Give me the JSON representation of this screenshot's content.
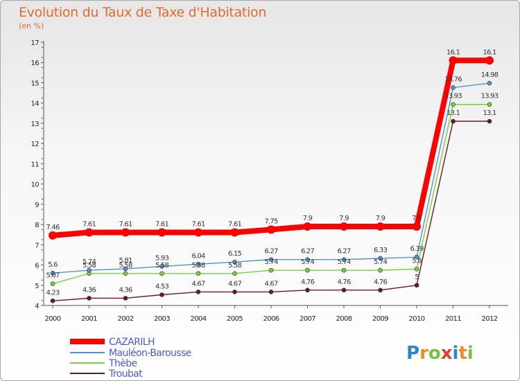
{
  "header": {
    "title": "Evolution du Taux de Taxe d'Habitation",
    "subtitle": "(en %)"
  },
  "brand": {
    "letters": [
      "P",
      "r",
      "o",
      "x",
      "i",
      "t",
      "i"
    ],
    "colors": [
      "#2e86c8",
      "#f08a24",
      "#7bc043",
      "#e0402e",
      "#2e86c8",
      "#f08a24",
      "#7bc043"
    ]
  },
  "chart_data": {
    "type": "line",
    "x": [
      "2000",
      "2001",
      "2002",
      "2003",
      "2004",
      "2005",
      "2006",
      "2007",
      "2008",
      "2009",
      "2010",
      "2011",
      "2012"
    ],
    "ylim": [
      4,
      17
    ],
    "yticks": [
      "4",
      "5",
      "6",
      "7",
      "8",
      "9",
      "10",
      "11",
      "12",
      "13",
      "14",
      "15",
      "16",
      "17"
    ],
    "grid": false,
    "legend": "bottom-left",
    "series": [
      {
        "name": "CAZARILH",
        "color": "#ff0000",
        "values": [
          7.46,
          7.61,
          7.61,
          7.61,
          7.61,
          7.61,
          7.75,
          7.9,
          7.9,
          7.9,
          7.9,
          16.1,
          16.1
        ],
        "labels": [
          "7.46",
          "7.61",
          "7.61",
          "7.61",
          "7.61",
          "7.61",
          "7.75",
          "7.9",
          "7.9",
          "7.9",
          "7.9",
          "16.1",
          "16.1"
        ]
      },
      {
        "name": "Mauléon-Barousse",
        "color": "#4f94cd",
        "values": [
          5.6,
          5.74,
          5.81,
          5.93,
          6.04,
          6.15,
          6.27,
          6.27,
          6.27,
          6.33,
          6.39,
          14.76,
          14.98
        ],
        "labels": [
          "5.6",
          "5.74",
          "5.81",
          "5.93",
          "6.04",
          "6.15",
          "6.27",
          "6.27",
          "6.27",
          "6.33",
          "6.39",
          "14.76",
          "14.98"
        ]
      },
      {
        "name": "Thèbe",
        "color": "#7ccd3c",
        "values": [
          5.07,
          5.58,
          5.58,
          5.58,
          5.58,
          5.58,
          5.74,
          5.74,
          5.74,
          5.74,
          5.8,
          13.93,
          13.93
        ],
        "labels": [
          "5.07",
          "5.58",
          "5.58",
          "5.58",
          "5.58",
          "5.58",
          "5.74",
          "5.74",
          "5.74",
          "5.74",
          "5.8",
          "13.93",
          "13.93"
        ]
      },
      {
        "name": "Troubat",
        "color": "#6b1a1a",
        "values": [
          4.23,
          4.36,
          4.36,
          4.53,
          4.67,
          4.67,
          4.67,
          4.76,
          4.76,
          4.76,
          5,
          13.1,
          13.1
        ],
        "labels": [
          "4.23",
          "4.36",
          "4.36",
          "4.53",
          "4.67",
          "4.67",
          "4.67",
          "4.76",
          "4.76",
          "4.76",
          "5",
          "13.1",
          "13.1"
        ]
      }
    ]
  }
}
